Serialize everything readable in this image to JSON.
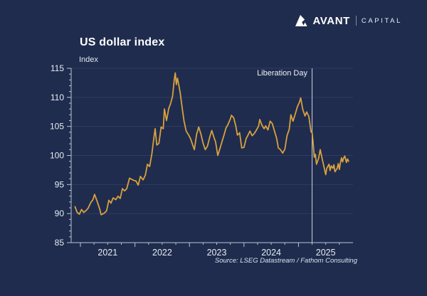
{
  "header": {
    "logo": {
      "icon": "avant-mountain-icon",
      "brand": "AVANT",
      "suffix": "CAPITAL"
    }
  },
  "source": "Source: LSEG Datastream / Fathom Consulting",
  "colors": {
    "background": "#1f2c4e",
    "line": "#d9a13d",
    "grid": "#2e3d60",
    "axis": "#b9c3d4",
    "tick_text": "#e6ebf3",
    "annotation_line": "#cdd4e0",
    "title_text": "#ffffff"
  },
  "chart_data": {
    "type": "line",
    "title": "US dollar index",
    "ylabel": "Index",
    "xlabel": "",
    "ylim": [
      85,
      115
    ],
    "y_ticks": [
      85,
      90,
      95,
      100,
      105,
      110,
      115
    ],
    "y_minor_step": 1,
    "x_domain": [
      2020.83,
      2026.0
    ],
    "x_ticks_years": [
      2021,
      2022,
      2023,
      2024,
      2025
    ],
    "x_minor_step_years": 0.25,
    "grid": "horizontal-only",
    "legend": "none",
    "annotations": [
      {
        "label": "Liberation Day",
        "x": 2025.25
      }
    ],
    "series": [
      {
        "name": "US dollar index",
        "points": [
          [
            2020.9,
            91.2
          ],
          [
            2020.94,
            90.2
          ],
          [
            2020.98,
            89.9
          ],
          [
            2021.02,
            90.7
          ],
          [
            2021.06,
            90.2
          ],
          [
            2021.1,
            90.5
          ],
          [
            2021.14,
            90.9
          ],
          [
            2021.19,
            91.9
          ],
          [
            2021.23,
            92.4
          ],
          [
            2021.26,
            93.3
          ],
          [
            2021.31,
            92.0
          ],
          [
            2021.35,
            90.9
          ],
          [
            2021.38,
            89.8
          ],
          [
            2021.44,
            90.1
          ],
          [
            2021.48,
            90.5
          ],
          [
            2021.52,
            92.3
          ],
          [
            2021.56,
            91.8
          ],
          [
            2021.6,
            92.7
          ],
          [
            2021.65,
            92.4
          ],
          [
            2021.69,
            93.0
          ],
          [
            2021.73,
            92.6
          ],
          [
            2021.77,
            94.3
          ],
          [
            2021.81,
            93.9
          ],
          [
            2021.85,
            94.3
          ],
          [
            2021.9,
            96.1
          ],
          [
            2021.94,
            95.9
          ],
          [
            2021.98,
            95.7
          ],
          [
            2022.02,
            95.6
          ],
          [
            2022.06,
            94.9
          ],
          [
            2022.1,
            96.4
          ],
          [
            2022.15,
            95.8
          ],
          [
            2022.19,
            96.6
          ],
          [
            2022.23,
            98.5
          ],
          [
            2022.27,
            98.1
          ],
          [
            2022.31,
            100.3
          ],
          [
            2022.35,
            103.2
          ],
          [
            2022.37,
            104.6
          ],
          [
            2022.4,
            101.8
          ],
          [
            2022.44,
            102.1
          ],
          [
            2022.48,
            104.9
          ],
          [
            2022.52,
            104.6
          ],
          [
            2022.54,
            108.0
          ],
          [
            2022.58,
            106.0
          ],
          [
            2022.62,
            108.1
          ],
          [
            2022.65,
            108.8
          ],
          [
            2022.69,
            110.2
          ],
          [
            2022.72,
            113.0
          ],
          [
            2022.74,
            114.2
          ],
          [
            2022.76,
            112.2
          ],
          [
            2022.78,
            113.3
          ],
          [
            2022.81,
            111.8
          ],
          [
            2022.83,
            110.8
          ],
          [
            2022.87,
            107.9
          ],
          [
            2022.9,
            105.9
          ],
          [
            2022.94,
            104.2
          ],
          [
            2022.98,
            103.6
          ],
          [
            2023.02,
            102.9
          ],
          [
            2023.06,
            101.8
          ],
          [
            2023.09,
            101.0
          ],
          [
            2023.13,
            103.6
          ],
          [
            2023.17,
            104.9
          ],
          [
            2023.21,
            103.7
          ],
          [
            2023.25,
            102.1
          ],
          [
            2023.29,
            101.0
          ],
          [
            2023.33,
            101.6
          ],
          [
            2023.37,
            103.1
          ],
          [
            2023.41,
            104.3
          ],
          [
            2023.45,
            103.1
          ],
          [
            2023.48,
            102.3
          ],
          [
            2023.52,
            100.0
          ],
          [
            2023.56,
            101.2
          ],
          [
            2023.6,
            102.5
          ],
          [
            2023.63,
            103.4
          ],
          [
            2023.67,
            104.7
          ],
          [
            2023.71,
            105.4
          ],
          [
            2023.75,
            106.3
          ],
          [
            2023.77,
            106.9
          ],
          [
            2023.81,
            106.5
          ],
          [
            2023.85,
            105.1
          ],
          [
            2023.88,
            103.5
          ],
          [
            2023.92,
            103.9
          ],
          [
            2023.96,
            101.3
          ],
          [
            2024.0,
            101.4
          ],
          [
            2024.04,
            102.9
          ],
          [
            2024.08,
            103.6
          ],
          [
            2024.11,
            104.2
          ],
          [
            2024.15,
            103.4
          ],
          [
            2024.19,
            103.8
          ],
          [
            2024.23,
            104.4
          ],
          [
            2024.27,
            105.1
          ],
          [
            2024.29,
            106.2
          ],
          [
            2024.33,
            105.2
          ],
          [
            2024.37,
            104.6
          ],
          [
            2024.4,
            105.1
          ],
          [
            2024.44,
            104.4
          ],
          [
            2024.48,
            105.9
          ],
          [
            2024.52,
            105.5
          ],
          [
            2024.56,
            104.2
          ],
          [
            2024.6,
            102.9
          ],
          [
            2024.63,
            101.3
          ],
          [
            2024.67,
            101.0
          ],
          [
            2024.71,
            100.4
          ],
          [
            2024.75,
            101.1
          ],
          [
            2024.79,
            103.4
          ],
          [
            2024.83,
            104.5
          ],
          [
            2024.86,
            107.0
          ],
          [
            2024.9,
            105.9
          ],
          [
            2024.94,
            107.1
          ],
          [
            2024.98,
            108.4
          ],
          [
            2025.02,
            109.2
          ],
          [
            2025.04,
            109.9
          ],
          [
            2025.08,
            107.9
          ],
          [
            2025.12,
            106.8
          ],
          [
            2025.15,
            107.5
          ],
          [
            2025.19,
            106.7
          ],
          [
            2025.23,
            104.1
          ],
          [
            2025.25,
            103.9
          ],
          [
            2025.27,
            102.0
          ],
          [
            2025.29,
            99.7
          ],
          [
            2025.31,
            100.2
          ],
          [
            2025.33,
            98.5
          ],
          [
            2025.37,
            99.5
          ],
          [
            2025.4,
            101.0
          ],
          [
            2025.44,
            99.2
          ],
          [
            2025.46,
            98.4
          ],
          [
            2025.5,
            96.7
          ],
          [
            2025.52,
            97.8
          ],
          [
            2025.56,
            98.5
          ],
          [
            2025.58,
            97.4
          ],
          [
            2025.6,
            98.2
          ],
          [
            2025.63,
            97.8
          ],
          [
            2025.65,
            98.4
          ],
          [
            2025.67,
            97.2
          ],
          [
            2025.71,
            97.8
          ],
          [
            2025.73,
            98.6
          ],
          [
            2025.75,
            97.6
          ],
          [
            2025.77,
            98.8
          ],
          [
            2025.79,
            99.6
          ],
          [
            2025.81,
            98.9
          ],
          [
            2025.83,
            99.6
          ],
          [
            2025.85,
            99.9
          ],
          [
            2025.88,
            98.8
          ],
          [
            2025.9,
            99.4
          ],
          [
            2025.92,
            99.0
          ]
        ]
      }
    ]
  }
}
